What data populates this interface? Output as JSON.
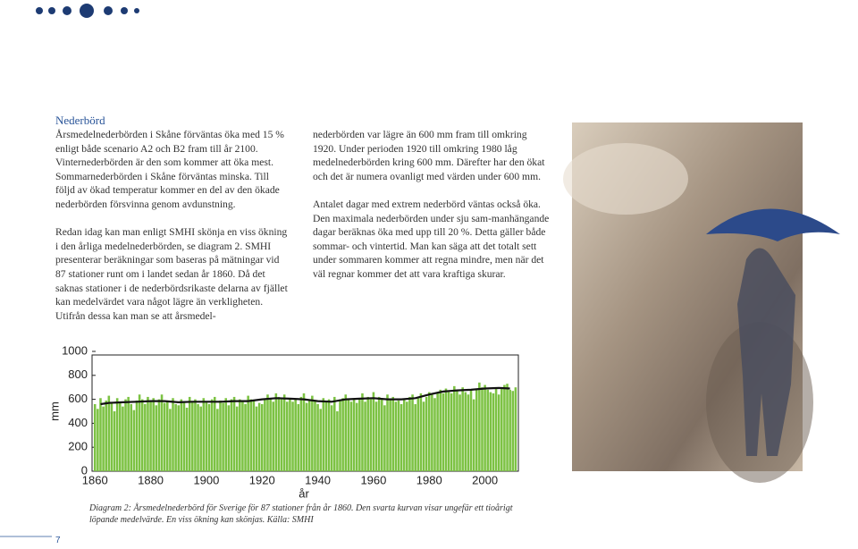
{
  "header": {
    "title": "Nederbörd"
  },
  "column_left": {
    "paragraphs": [
      "Årsmedelnederbörden i Skåne förväntas öka med 15 % enligt både scenario A2 och B2 fram till år 2100. Vinternederbörden är den som kommer att öka mest. Sommarnederbörden i Skåne förväntas minska. Till följd av ökad temperatur kommer en del av den ökade nederbörden försvinna genom avdunstning.",
      "Redan idag kan man enligt SMHI skönja en viss ökning i den årliga medelnederbörden, se diagram 2. SMHI presenterar beräkningar som baseras på mätningar vid 87 stationer runt om i landet sedan år 1860. Då det saknas stationer i de nederbördsrikaste delarna av fjället kan medelvärdet vara något lägre än verkligheten. Utifrån dessa kan man se att årsmedel-"
    ]
  },
  "column_middle": {
    "paragraphs": [
      "nederbörden var lägre än 600 mm fram till omkring 1920. Under perioden 1920 till omkring 1980 låg medelnederbörden kring 600 mm. Därefter har den ökat och det är numera ovanligt med värden under 600 mm.",
      "Antalet dagar med extrem nederbörd väntas också öka. Den maximala nederbörden under sju sam-manhängande dagar beräknas öka med upp till 20 %. Detta gäller både sommar- och vintertid. Man kan säga att det totalt sett under sommaren kommer att regna mindre, men när det väl regnar kommer det att vara kraftiga skurar."
    ]
  },
  "chart_data": {
    "type": "bar",
    "ylabel": "mm",
    "xlabel": "år",
    "color": "#7cc243",
    "x": [
      1860,
      1861,
      1862,
      1863,
      1864,
      1865,
      1866,
      1867,
      1868,
      1869,
      1870,
      1871,
      1872,
      1873,
      1874,
      1875,
      1876,
      1877,
      1878,
      1879,
      1880,
      1881,
      1882,
      1883,
      1884,
      1885,
      1886,
      1887,
      1888,
      1889,
      1890,
      1891,
      1892,
      1893,
      1894,
      1895,
      1896,
      1897,
      1898,
      1899,
      1900,
      1901,
      1902,
      1903,
      1904,
      1905,
      1906,
      1907,
      1908,
      1909,
      1910,
      1911,
      1912,
      1913,
      1914,
      1915,
      1916,
      1917,
      1918,
      1919,
      1920,
      1921,
      1922,
      1923,
      1924,
      1925,
      1926,
      1927,
      1928,
      1929,
      1930,
      1931,
      1932,
      1933,
      1934,
      1935,
      1936,
      1937,
      1938,
      1939,
      1940,
      1941,
      1942,
      1943,
      1944,
      1945,
      1946,
      1947,
      1948,
      1949,
      1950,
      1951,
      1952,
      1953,
      1954,
      1955,
      1956,
      1957,
      1958,
      1959,
      1960,
      1961,
      1962,
      1963,
      1964,
      1965,
      1966,
      1967,
      1968,
      1969,
      1970,
      1971,
      1972,
      1973,
      1974,
      1975,
      1976,
      1977,
      1978,
      1979,
      1980,
      1981,
      1982,
      1983,
      1984,
      1985,
      1986,
      1987,
      1988,
      1989,
      1990,
      1991,
      1992,
      1993,
      1994,
      1995,
      1996,
      1997,
      1998,
      1999,
      2000,
      2001,
      2002,
      2003,
      2004,
      2005,
      2006,
      2007,
      2008,
      2009,
      2010,
      2011
    ],
    "values": [
      560,
      520,
      610,
      540,
      590,
      630,
      570,
      500,
      610,
      580,
      540,
      600,
      620,
      560,
      510,
      590,
      640,
      600,
      560,
      620,
      580,
      610,
      550,
      600,
      640,
      570,
      590,
      520,
      610,
      560,
      550,
      600,
      570,
      530,
      620,
      580,
      600,
      560,
      540,
      610,
      580,
      560,
      600,
      620,
      520,
      590,
      570,
      610,
      550,
      600,
      620,
      540,
      600,
      580,
      560,
      630,
      600,
      590,
      540,
      570,
      560,
      600,
      640,
      610,
      580,
      650,
      620,
      600,
      640,
      580,
      610,
      580,
      600,
      560,
      620,
      650,
      570,
      600,
      630,
      590,
      560,
      520,
      610,
      580,
      600,
      550,
      620,
      500,
      600,
      610,
      640,
      600,
      580,
      610,
      570,
      600,
      650,
      580,
      620,
      600,
      660,
      580,
      620,
      600,
      550,
      640,
      600,
      620,
      580,
      590,
      560,
      600,
      580,
      620,
      640,
      560,
      610,
      650,
      580,
      620,
      660,
      640,
      610,
      660,
      680,
      650,
      690,
      660,
      650,
      710,
      680,
      640,
      700,
      660,
      640,
      680,
      600,
      690,
      740,
      700,
      720,
      680,
      660,
      650,
      690,
      640,
      700,
      720,
      730,
      680,
      670,
      700
    ],
    "trend": {
      "color": "#111111",
      "x": [
        1862,
        1865,
        1870,
        1875,
        1880,
        1885,
        1890,
        1895,
        1900,
        1905,
        1910,
        1915,
        1920,
        1925,
        1930,
        1935,
        1940,
        1945,
        1950,
        1955,
        1960,
        1965,
        1970,
        1975,
        1980,
        1985,
        1990,
        1995,
        2000,
        2005,
        2009
      ],
      "values": [
        560,
        570,
        575,
        580,
        585,
        585,
        575,
        580,
        580,
        580,
        585,
        585,
        600,
        610,
        605,
        600,
        585,
        580,
        600,
        605,
        610,
        600,
        600,
        610,
        640,
        665,
        675,
        680,
        690,
        695,
        690
      ]
    },
    "xlim": [
      1858,
      2012
    ],
    "xticks": [
      1860,
      1880,
      1900,
      1920,
      1940,
      1960,
      1980,
      2000
    ],
    "ylim": [
      0,
      1000
    ],
    "yticks": [
      0,
      200,
      400,
      600,
      800,
      1000
    ]
  },
  "caption": "Diagram 2: Årsmedelnederbörd för Sverige för 87 stationer från år 1860. Den svarta kurvan visar ungefär ett tioårigt löpande medelvärde. En viss ökning kan skönjas. Källa: SMHI",
  "page_number": "7"
}
